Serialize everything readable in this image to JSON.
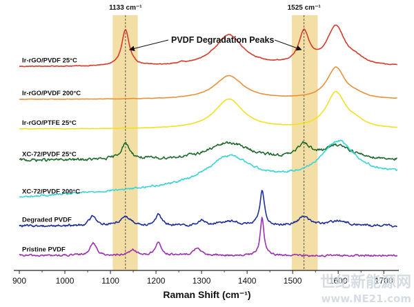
{
  "chart_data": {
    "type": "line",
    "xlabel": "Raman Shift (cm⁻¹)",
    "xlim": [
      900,
      1730
    ],
    "xticks": [
      900,
      1000,
      1100,
      1200,
      1300,
      1400,
      1500,
      1600,
      1700
    ],
    "highlight_bands": [
      {
        "label": "1133 cm⁻¹",
        "center": 1133,
        "range": [
          1105,
          1160
        ],
        "color": "#f3dfa5"
      },
      {
        "label": "1525 cm⁻¹",
        "center": 1525,
        "range": [
          1498,
          1555
        ],
        "color": "#f3dfa5"
      }
    ],
    "annotation": {
      "text": "PVDF Degradation Peaks",
      "points_to": [
        1133,
        1525
      ]
    },
    "series": [
      {
        "name": "Ir-rGO/PVDF 25°C",
        "color": "#d63a2a",
        "baseline": 6.35,
        "slope": 0.0,
        "noise": 0.02,
        "peaks": [
          [
            1133,
            1.15,
            10
          ],
          [
            1255,
            0.06,
            6
          ],
          [
            1360,
            1.0,
            38
          ],
          [
            1525,
            1.0,
            14
          ],
          [
            1595,
            1.25,
            24
          ],
          [
            1640,
            0.15,
            20
          ]
        ]
      },
      {
        "name": "Ir-rGO/PVDF 200°C",
        "color": "#e8913a",
        "baseline": 5.3,
        "slope": 0.0,
        "noise": 0.01,
        "peaks": [
          [
            1360,
            0.75,
            38
          ],
          [
            1595,
            1.0,
            24
          ],
          [
            1640,
            0.1,
            20
          ]
        ]
      },
      {
        "name": "Ir-rGO/PTFE 25°C",
        "color": "#f2e021",
        "baseline": 4.35,
        "slope": 0.0,
        "noise": 0.01,
        "peaks": [
          [
            1360,
            0.95,
            38
          ],
          [
            1595,
            1.15,
            26
          ],
          [
            1640,
            0.15,
            22
          ]
        ]
      },
      {
        "name": "XC-72/PVDF 25°C",
        "color": "#1e6b2c",
        "baseline": 3.35,
        "slope": 0.0,
        "noise": 0.07,
        "peaks": [
          [
            1133,
            0.5,
            12
          ],
          [
            1360,
            0.55,
            55
          ],
          [
            1525,
            0.45,
            16
          ],
          [
            1600,
            0.45,
            38
          ]
        ]
      },
      {
        "name": "XC-72/PVDF 200°C",
        "color": "#3bd4d8",
        "baseline": 2.15,
        "slope": 0.0009,
        "noise": 0.05,
        "peaks": [
          [
            1360,
            0.9,
            60
          ],
          [
            1600,
            1.15,
            45
          ]
        ]
      },
      {
        "name": "Degraded PVDF",
        "color": "#1c2d9c",
        "baseline": 1.25,
        "slope": 0.0,
        "noise": 0.06,
        "peaks": [
          [
            1062,
            0.32,
            9
          ],
          [
            1133,
            0.3,
            14
          ],
          [
            1205,
            0.35,
            8
          ],
          [
            1300,
            0.15,
            9
          ],
          [
            1360,
            0.15,
            25
          ],
          [
            1433,
            1.1,
            6
          ],
          [
            1525,
            0.3,
            14
          ],
          [
            1600,
            0.15,
            25
          ]
        ]
      },
      {
        "name": "Pristine PVDF",
        "color": "#9b30b0",
        "baseline": 0.3,
        "slope": 0.0,
        "noise": 0.05,
        "peaks": [
          [
            1062,
            0.42,
            8
          ],
          [
            1150,
            0.18,
            8
          ],
          [
            1205,
            0.42,
            8
          ],
          [
            1290,
            0.25,
            9
          ],
          [
            1433,
            1.2,
            5
          ]
        ]
      }
    ]
  },
  "watermark": {
    "text_cn": "世纪新能源网",
    "text_url": "www.NE21.com"
  }
}
